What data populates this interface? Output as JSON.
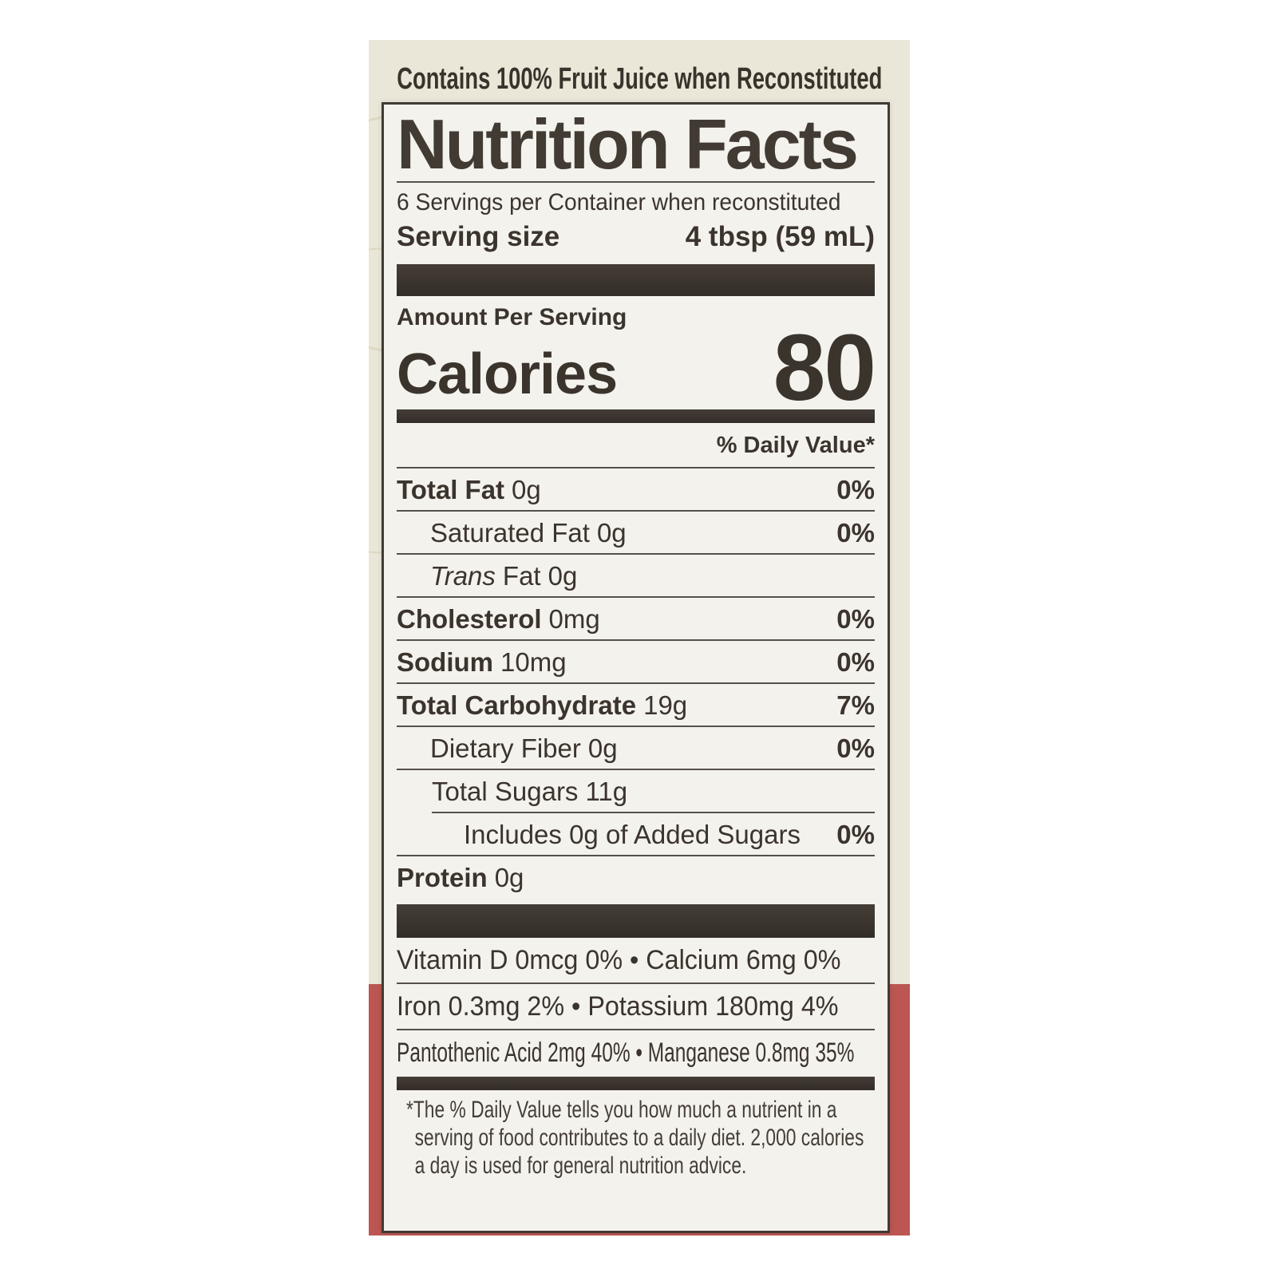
{
  "colors": {
    "background_cream": "#eae7d9",
    "band_red": "#bb5652",
    "panel_bg": "#f3f2ec",
    "ink": "#3b342d"
  },
  "header": {
    "claim": "Contains 100% Fruit Juice when Reconstituted"
  },
  "label": {
    "title": "Nutrition Facts",
    "servings_per_container": "6 Servings per Container when reconstituted",
    "serving_size_label": "Serving size",
    "serving_size_value": "4 tbsp (59 mL)",
    "amount_per_serving": "Amount Per Serving",
    "calories_label": "Calories",
    "calories_value": "80",
    "daily_value_header": "% Daily Value*",
    "nutrients": [
      {
        "name": "Total Fat",
        "amount": "0g",
        "dv": "0%"
      },
      {
        "name": "Saturated Fat",
        "amount": "0g",
        "dv": "0%"
      },
      {
        "name_italic": "Trans",
        "name": "Fat",
        "amount": "0g",
        "dv": ""
      },
      {
        "name": "Cholesterol",
        "amount": "0mg",
        "dv": "0%"
      },
      {
        "name": "Sodium",
        "amount": "10mg",
        "dv": "0%"
      },
      {
        "name": "Total Carbohydrate",
        "amount": "19g",
        "dv": "7%"
      },
      {
        "name": "Dietary Fiber",
        "amount": "0g",
        "dv": "0%"
      },
      {
        "name": "Total Sugars",
        "amount": "11g",
        "dv": ""
      },
      {
        "name": "Includes 0g of Added Sugars",
        "amount": "",
        "dv": "0%"
      },
      {
        "name": "Protein",
        "amount": "0g",
        "dv": ""
      }
    ],
    "micronutrient_lines": [
      "Vitamin D 0mcg 0% • Calcium 6mg 0%",
      "Iron 0.3mg 2% • Potassium 180mg 4%",
      "Pantothenic Acid 2mg 40% • Manganese 0.8mg 35%"
    ],
    "footnote_lines": [
      "*The % Daily Value tells you how much a nutrient in a",
      "serving of food contributes to a daily diet. 2,000 calories",
      "a day is used for general nutrition advice."
    ]
  }
}
